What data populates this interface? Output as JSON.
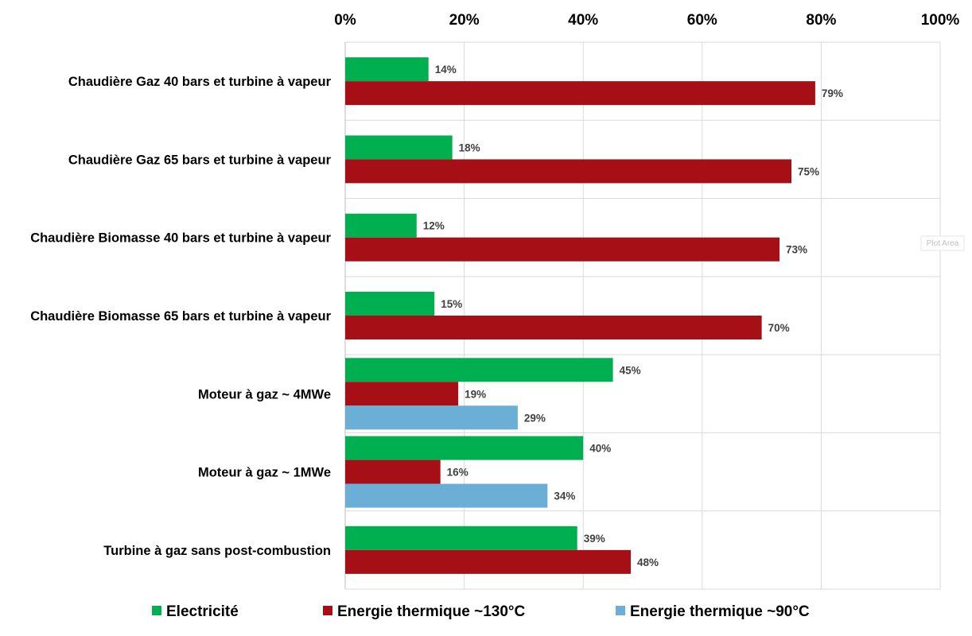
{
  "chart_data": {
    "type": "bar",
    "orientation": "horizontal",
    "categories": [
      "Chaudière Gaz 40 bars et turbine à vapeur",
      "Chaudière Gaz 65 bars et turbine à vapeur",
      "Chaudière Biomasse 40 bars et turbine à vapeur",
      "Chaudière Biomasse 65 bars et turbine à vapeur",
      "Moteur à gaz ~ 4MWe",
      "Moteur à gaz ~ 1MWe",
      "Turbine à gaz sans post-combustion"
    ],
    "series": [
      {
        "name": "Electricité",
        "color": "#00b050",
        "values": [
          14,
          18,
          12,
          15,
          45,
          40,
          39
        ],
        "labels": [
          "14%",
          "18%",
          "12%",
          "15%",
          "45%",
          "40%",
          "39%"
        ]
      },
      {
        "name": "Energie thermique ~130°C",
        "color": "#a50f15",
        "values": [
          79,
          75,
          73,
          70,
          19,
          16,
          48
        ],
        "labels": [
          "79%",
          "75%",
          "73%",
          "70%",
          "19%",
          "16%",
          "48%"
        ]
      },
      {
        "name": "Energie thermique ~90°C",
        "color": "#6baed6",
        "values": [
          null,
          null,
          null,
          null,
          29,
          34,
          null
        ],
        "labels": [
          "",
          "",
          "",
          "",
          "29%",
          "34%",
          ""
        ]
      }
    ],
    "xlim": [
      0,
      100
    ],
    "xticks": [
      0,
      20,
      40,
      60,
      80,
      100
    ],
    "xtick_labels": [
      "0%",
      "20%",
      "40%",
      "60%",
      "80%",
      "100%"
    ],
    "x_axis_position": "top",
    "grid": true,
    "legend_position": "bottom",
    "annotation": "Plot Area"
  }
}
